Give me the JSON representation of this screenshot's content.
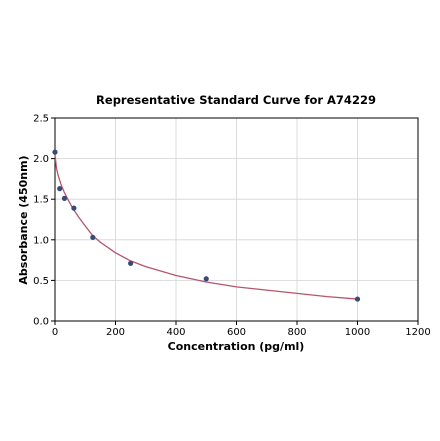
{
  "chart_data": {
    "type": "scatter",
    "title": "Representative Standard Curve for A74229",
    "xlabel": "Concentration (pg/ml)",
    "ylabel": "Absorbance (450nm)",
    "xlim": [
      0,
      1200
    ],
    "ylim": [
      0,
      2.5
    ],
    "xticks": [
      "0",
      "200",
      "400",
      "600",
      "800",
      "1000",
      "1200"
    ],
    "yticks": [
      "0.0",
      "0.5",
      "1.0",
      "1.5",
      "2.0",
      "2.5"
    ],
    "grid": true,
    "series": [
      {
        "x": [
          0,
          15.6,
          31.25,
          62.5,
          125,
          250,
          500,
          1000
        ],
        "y": [
          2.08,
          1.63,
          1.51,
          1.39,
          1.03,
          0.71,
          0.52,
          0.27
        ],
        "color": "#3a4a78"
      }
    ],
    "fit_curve": {
      "x": [
        0,
        5,
        10,
        20,
        30,
        45,
        60,
        80,
        100,
        125,
        150,
        200,
        250,
        300,
        400,
        500,
        600,
        700,
        800,
        900,
        1000
      ],
      "y": [
        2.05,
        1.88,
        1.8,
        1.68,
        1.59,
        1.48,
        1.38,
        1.27,
        1.17,
        1.05,
        0.97,
        0.84,
        0.74,
        0.67,
        0.56,
        0.48,
        0.42,
        0.38,
        0.34,
        0.3,
        0.27
      ],
      "color": "#b5556c"
    }
  }
}
